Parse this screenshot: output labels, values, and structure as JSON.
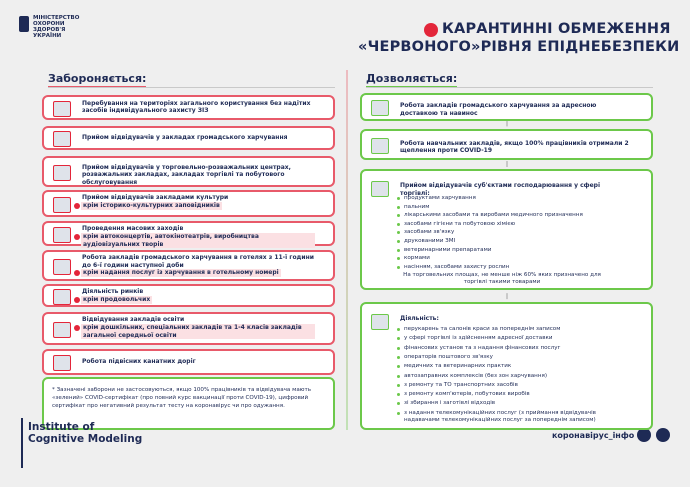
{
  "header": {
    "ministry": [
      "МІНІСТЕРСТВО",
      "ОХОРОНИ",
      "ЗДОРОВ'Я",
      "УКРАЇНИ"
    ],
    "title_lines": [
      "КАРАНТИННІ ОБМЕЖЕННЯ",
      "«ЧЕРВОНОГО»РІВНЯ ЕПІДНЕБЕЗПЕКИ"
    ]
  },
  "prohibited": {
    "heading": "Забороняється:",
    "items": [
      {
        "text": "Перебування на територіях загального користування без надітих засобів індивідуального захисту ЗІЗ"
      },
      {
        "text": "Прийом відвідувачів у закладах громадського харчування"
      },
      {
        "text": "Прийом відвідувачів у торговельно-розважальних центрах, розважальних закладах, закладах торгівлі та побутового обслуговування"
      },
      {
        "text": "Прийом відвідувачів закладами культури",
        "exception": "крім історико-культурних заповідників"
      },
      {
        "text": "Проведення масових заходів",
        "exception": "крім автоконцертів, автокінотеатрів, виробництва аудіовізуальних творів"
      },
      {
        "text": "Робота закладів громадського харчування в готелях з 11-ї години до 6-ї години наступної доби",
        "exception": "крім надання послуг із харчування в готельному номері"
      },
      {
        "text": "Діяльність ринків",
        "exception": "крім продовольчих"
      },
      {
        "text": "Відвідування закладів освіти",
        "exception": "крім дошкільних, спеціальних закладів та 1-4 класів закладів загальної середньої освіти"
      },
      {
        "text": "Робота підвісних канатних доріг"
      }
    ],
    "note": "* Зазначені заборони не застосовуються, якщо 100% працівників та відвідувача мають «зелений» COVID-сертифікат (про повний курс вакцинації проти COVID-19), цифровий сертифікат про негативний результат тесту на коронавірус чи про одужання."
  },
  "allowed": {
    "heading": "Дозволяється:",
    "items": [
      {
        "text": "Робота закладів громадського харчування за адресною доставкою та навинос"
      },
      {
        "text": "Робота навчальних закладів, якщо 100% працівників отримали 2 щеплення проти COVID-19"
      },
      {
        "text": "Прийом відвідувачів суб'єктами господарювання у сфері торгівлі:",
        "list": [
          "продуктами харчування",
          "пальним",
          "лікарськими засобами та виробами медичного призначення",
          "засобами гігієни та побутовою хімією",
          "засобами зв'язку",
          "друкованими ЗМІ",
          "ветеринарними препаратами",
          "кормами",
          "насінням, засобами захисту рослин"
        ],
        "footnote": "На торговельних площах, не менше ніж 60% яких призначено для торгівлі такими товарами"
      },
      {
        "text": "Діяльність:",
        "list": [
          "перукарень та салонів краси за попереднім записом",
          "у сфері торгівлі із здійсненням адресної доставки",
          "фінансових установ та з надання фінансових послуг",
          "операторів поштового зв'язку",
          "медичних та ветеринарних практик",
          "автозаправних комплексів (без зон харчування)",
          "з ремонту та ТО транспортних засобів",
          "з ремонту комп'ютерів, побутових виробів",
          "зі збирання і заготівлі відходів",
          "з надання телекомунікаційних послуг (з приймання відвідувачів надавачами телекомунікаційних послуг за попереднім записом)"
        ]
      }
    ]
  },
  "footer": {
    "institute": [
      "Institute of",
      "Cognitive Modeling"
    ],
    "hashtag": "коронавірус_інфо"
  }
}
